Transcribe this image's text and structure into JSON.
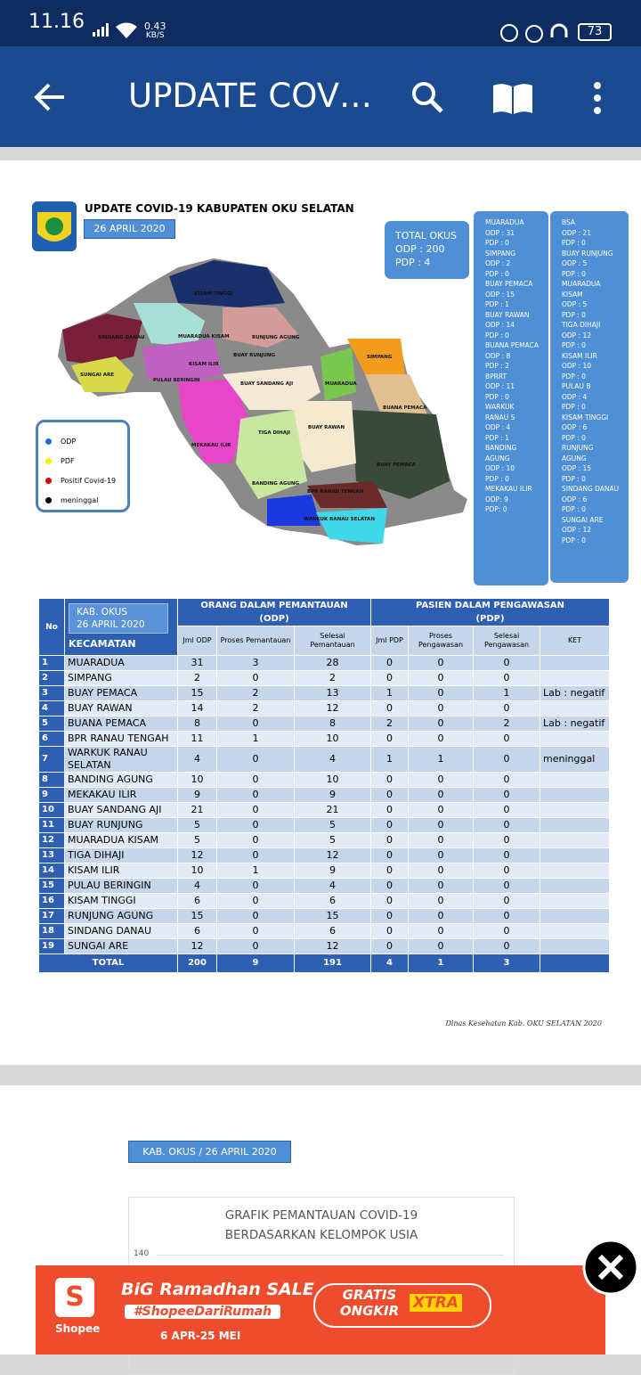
{
  "status_bar": {
    "time": "11.16",
    "net_speed": "0.43",
    "net_unit": "KB/S",
    "battery": "73"
  },
  "app_bar": {
    "title": "UPDATE COV…"
  },
  "infographic": {
    "title": "UPDATE COVID-19 KABUPATEN OKU SELATAN",
    "date": "26 APRIL 2020",
    "total_box": [
      "TOTAL OKUS",
      "ODP : 200",
      "PDP : 4"
    ],
    "list_left": [
      "MUARADUA",
      "ODP : 31",
      "PDP : 0",
      "SIMPANG",
      "ODP : 2",
      "PDP : 0",
      "BUAY PEMACA",
      "ODP : 15",
      "PDP : 1",
      "BUAY RAWAN",
      "ODP : 14",
      "PDP : 0",
      "BUANA PEMACA",
      "ODP : 8",
      "PDP : 2",
      "BPRRT",
      "ODP : 11",
      "PDP : 0",
      "WARKUK RANAU S",
      "ODP : 4",
      "PDP : 1",
      "BANDING AGUNG",
      "ODP : 10",
      "PDP : 0",
      "MEKAKAU ILIR",
      "ODP: 9",
      "PDP: 0"
    ],
    "list_right": [
      "BSA",
      "ODP : 21",
      "PDP : 0",
      "BUAY RUNJUNG",
      "ODP : 5",
      "PDP : 0",
      "MUARADUA KISAM",
      "ODP : 5",
      "PDP : 0",
      "TIGA DIHAJI",
      "ODP : 12",
      "PDP : 0",
      "KISAM ILIR",
      "ODP : 10",
      "PDP : 0",
      "PULAU B",
      "ODP : 4",
      "PDP : 0",
      "KISAM TINGGI",
      "ODP : 6",
      "PDP : 0",
      "RUNJUNG AGUNG",
      "ODP : 15",
      "PDP : 0",
      "SINDANG DANAU",
      "ODP : 6",
      "PDP : 0",
      "SUNGAI ARE",
      "ODP : 12",
      "PDP : 0"
    ],
    "legend": [
      {
        "label": "ODP",
        "color": "#1f6fd1"
      },
      {
        "label": "PDF",
        "color": "#f5f000"
      },
      {
        "label": "Positif Covid-19",
        "color": "#e00000"
      },
      {
        "label": "meninggal",
        "color": "#000000"
      }
    ],
    "map_labels": [
      "KISAM TINGGI",
      "SINDANG DANAU",
      "MUARADUA KISAM",
      "RUNJUNG AGUNG",
      "SUNGAI ARE",
      "KISAM ILIR",
      "BUAY RUNJUNG",
      "PULAU BERINGIN",
      "BUAY SANDANG AJI",
      "MUARADUA",
      "SIMPANG",
      "BUANA PEMACA",
      "TIGA DIHAJI",
      "BUAY RAWAN",
      "MEKAKAU ILIR",
      "BUAY PEMACA",
      "BANDING AGUNG",
      "BPR RANAU TENGAH",
      "WARKUK RANAU SELATAN"
    ],
    "table": {
      "corner_title": "KAB. OKUS",
      "corner_date": "26 APRIL 2020",
      "col_no": "No",
      "col_kecamatan": "KECAMATAN",
      "odp_group": [
        "ORANG DALAM PEMANTAUAN",
        "(ODP)"
      ],
      "pdp_group": [
        "PASIEN DALAM PENGAWASAN",
        "(PDP)"
      ],
      "subheaders": [
        "Jml ODP",
        "Proses Pemantauan",
        "Selesai Pemantauan",
        "Jml PDP",
        "Proses Pengawasan",
        "Selesai Pengawasan",
        "KET"
      ],
      "rows": [
        [
          1,
          "MUARADUA",
          31,
          3,
          28,
          0,
          0,
          0,
          null
        ],
        [
          2,
          "SIMPANG",
          2,
          0,
          2,
          0,
          0,
          0,
          null
        ],
        [
          3,
          "BUAY PEMACA",
          15,
          2,
          13,
          1,
          0,
          1,
          "Lab : negatif"
        ],
        [
          4,
          "BUAY RAWAN",
          14,
          2,
          12,
          0,
          0,
          0,
          null
        ],
        [
          5,
          "BUANA PEMACA",
          8,
          0,
          8,
          2,
          0,
          2,
          "Lab : negatif"
        ],
        [
          6,
          "BPR RANAU TENGAH",
          11,
          1,
          10,
          0,
          0,
          0,
          null
        ],
        [
          7,
          "WARKUK RANAU SELATAN",
          4,
          0,
          4,
          1,
          1,
          0,
          "meninggal"
        ],
        [
          8,
          "BANDING AGUNG",
          10,
          0,
          10,
          0,
          0,
          0,
          null
        ],
        [
          9,
          "MEKAKAU ILIR",
          9,
          0,
          9,
          0,
          0,
          0,
          null
        ],
        [
          10,
          "BUAY SANDANG AJI",
          21,
          0,
          21,
          0,
          0,
          0,
          null
        ],
        [
          11,
          "BUAY RUNJUNG",
          5,
          0,
          5,
          0,
          0,
          0,
          null
        ],
        [
          12,
          "MUARADUA KISAM",
          5,
          0,
          5,
          0,
          0,
          0,
          null
        ],
        [
          13,
          "TIGA DIHAJI",
          12,
          0,
          12,
          0,
          0,
          0,
          null
        ],
        [
          14,
          "KISAM ILIR",
          10,
          1,
          9,
          0,
          0,
          0,
          null
        ],
        [
          15,
          "PULAU BERINGIN",
          4,
          0,
          4,
          0,
          0,
          0,
          null
        ],
        [
          16,
          "KISAM TINGGI",
          6,
          0,
          6,
          0,
          0,
          0,
          null
        ],
        [
          17,
          "RUNJUNG AGUNG",
          15,
          0,
          15,
          0,
          0,
          0,
          null
        ],
        [
          18,
          "SINDANG DANAU",
          6,
          0,
          6,
          0,
          0,
          0,
          null
        ],
        [
          19,
          "SUNGAI ARE",
          12,
          0,
          12,
          0,
          0,
          0,
          null
        ]
      ],
      "total": [
        "TOTAL",
        200,
        9,
        191,
        4,
        1,
        3
      ]
    },
    "source": "Dinas Kesehatan Kab. OKU SELATAN 2020"
  },
  "chart_card": {
    "tag": "KAB. OKUS / 26 APRIL 2020",
    "title_lines": [
      "GRAFIK PEMANTAUAN COVID-19",
      "BERDASARKAN KELOMPOK USIA"
    ],
    "visible_tick": 140
  },
  "ad": {
    "brand": "Shopee",
    "headline": "BiG Ramadhan SALE",
    "hashtag": "#ShopeeDariRumah",
    "dates": "6 APR-25 MEI",
    "promo": "GRATIS ONGKIR",
    "promo_tag": "XTRA"
  }
}
